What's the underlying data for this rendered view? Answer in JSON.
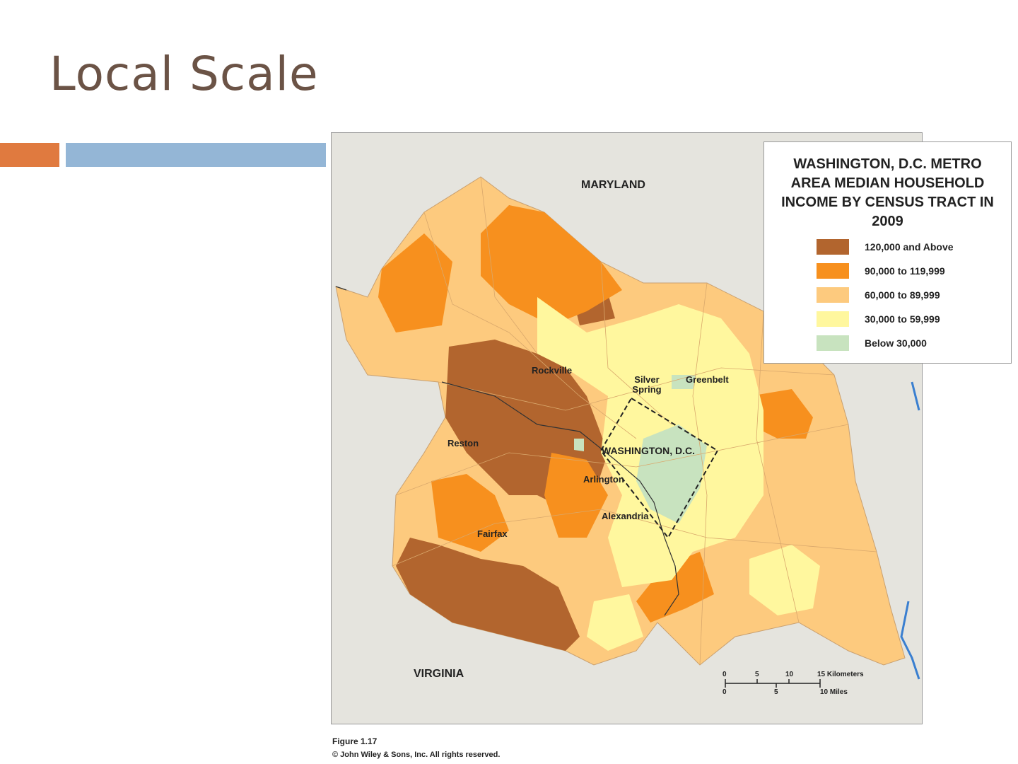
{
  "header": {
    "title": "Local Scale"
  },
  "map": {
    "states": [
      "MARYLAND",
      "VIRGINIA"
    ],
    "places": [
      "Rockville",
      "Silver Spring",
      "Greenbelt",
      "Reston",
      "WASHINGTON, D.C.",
      "Arlington",
      "Alexandria",
      "Fairfax"
    ],
    "legend": {
      "title": "WASHINGTON, D.C. METRO AREA MEDIAN HOUSEHOLD INCOME BY CENSUS TRACT IN 2009",
      "items": [
        {
          "label": "120,000 and Above",
          "color": "#b2652e"
        },
        {
          "label": "90,000 to 119,999",
          "color": "#f7901e"
        },
        {
          "label": "60,000 to 89,999",
          "color": "#fdca7e"
        },
        {
          "label": "30,000 to 59,999",
          "color": "#fff79e"
        },
        {
          "label": "Below 30,000",
          "color": "#c8e3bf"
        }
      ]
    },
    "scale": {
      "kilometers": [
        "0",
        "5",
        "10",
        "15 Kilometers"
      ],
      "miles": [
        "0",
        "5",
        "10 Miles"
      ]
    }
  },
  "caption": {
    "figure": "Figure 1.17",
    "copyright": "© John Wiley & Sons, Inc. All rights reserved."
  }
}
